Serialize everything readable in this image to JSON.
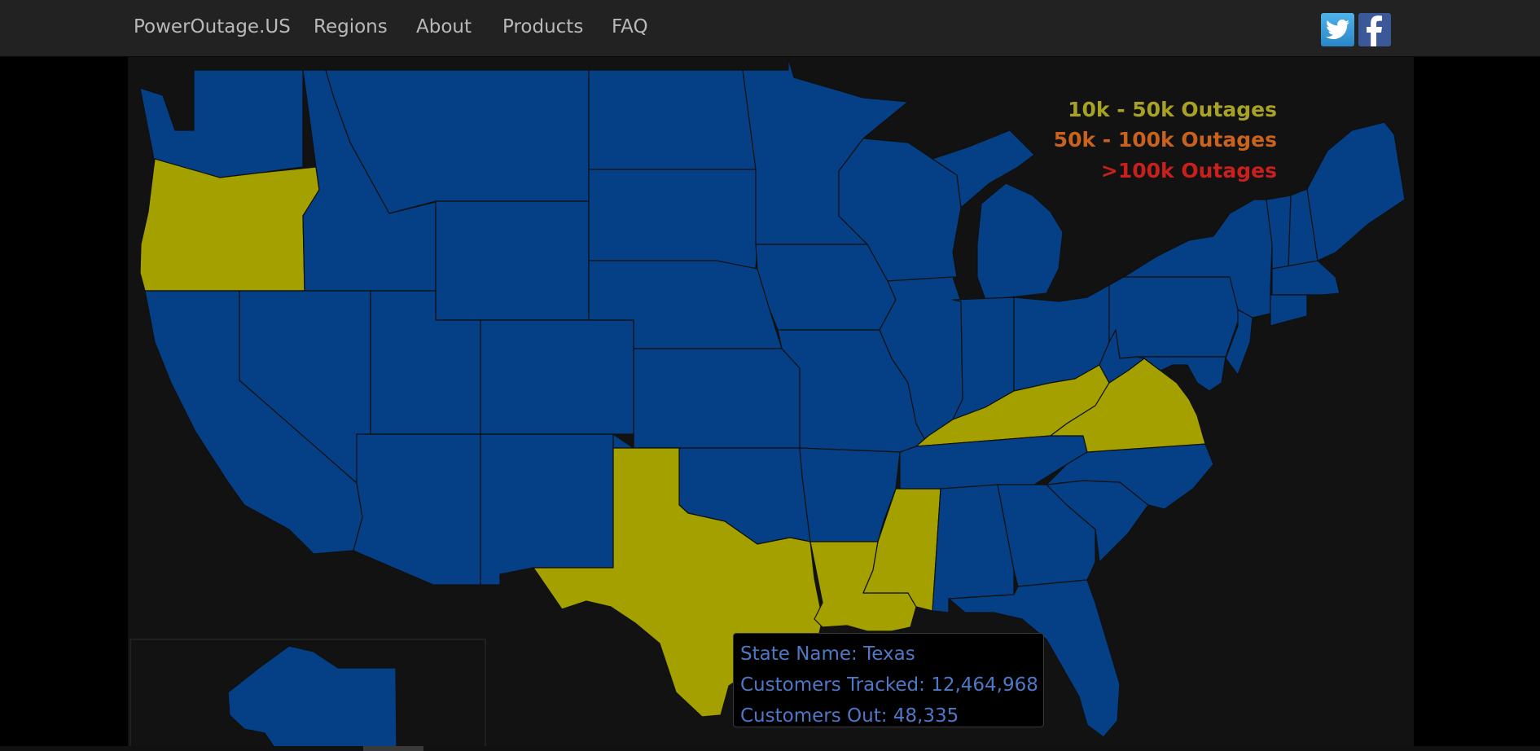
{
  "navbar": {
    "brand": "PowerOutage.US",
    "links": [
      "Regions",
      "About",
      "Products",
      "FAQ"
    ]
  },
  "social": {
    "twitter_icon": "twitter-icon",
    "facebook_icon": "facebook-icon"
  },
  "legend": {
    "items": [
      {
        "label": "10k - 50k Outages",
        "color": "#a7a226"
      },
      {
        "label": "50k - 100k Outages",
        "color": "#c8621c"
      },
      {
        "label": ">100k Outages",
        "color": "#c8201c"
      }
    ]
  },
  "map": {
    "colors": {
      "no_outage": "#053f85",
      "tier1": "#a3a000",
      "background": "#121212"
    },
    "highlighted_states": [
      "Oregon",
      "Texas",
      "Louisiana",
      "Mississippi",
      "Kentucky",
      "Virginia"
    ]
  },
  "tooltip": {
    "state_name": "State Name: Texas",
    "customers_tracked": "Customers Tracked: 12,464,968",
    "customers_out": "Customers Out: 48,335"
  }
}
